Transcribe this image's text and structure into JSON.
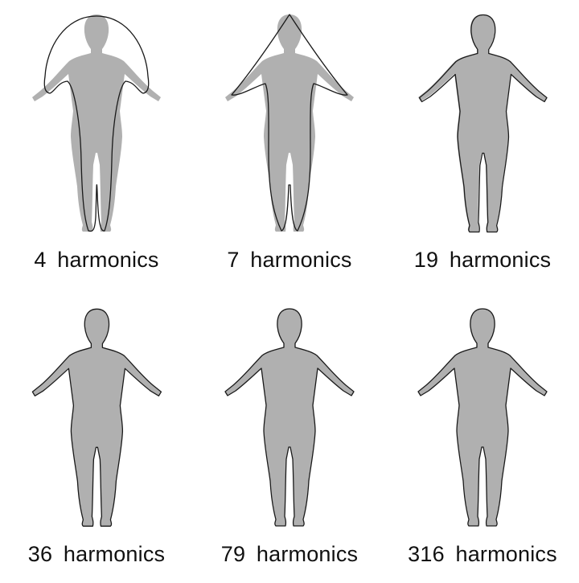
{
  "figure": {
    "panels": [
      {
        "label": "4  harmonics"
      },
      {
        "label": "7  harmonics"
      },
      {
        "label": "19  harmonics"
      },
      {
        "label": "36  harmonics"
      },
      {
        "label": "79  harmonics"
      },
      {
        "label": "316  harmonics"
      }
    ]
  },
  "colors": {
    "silhouette_fill": "#b0b0b0",
    "outline_stroke": "#1a1a1a",
    "background": "#ffffff"
  }
}
